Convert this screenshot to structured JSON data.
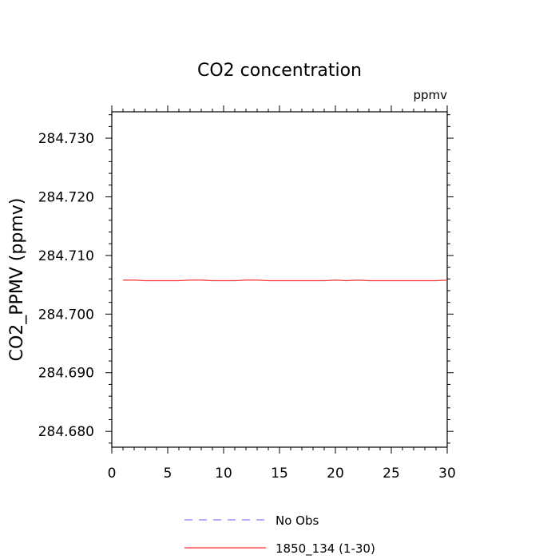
{
  "chart_data": {
    "type": "line",
    "title": "CO2 concentration",
    "units_label": "ppmv",
    "xlabel": "",
    "ylabel": "CO2_PPMV  (ppmv)",
    "xlim": [
      0,
      30
    ],
    "ylim": [
      284.6773,
      284.7345
    ],
    "x_ticks": [
      0,
      5,
      10,
      15,
      20,
      25,
      30
    ],
    "x_tick_labels": [
      "0",
      "5",
      "10",
      "15",
      "20",
      "25",
      "30"
    ],
    "y_ticks": [
      284.68,
      284.69,
      284.7,
      284.71,
      284.72,
      284.73
    ],
    "y_tick_labels": [
      "284.680",
      "284.690",
      "284.700",
      "284.710",
      "284.720",
      "284.730"
    ],
    "grid": false,
    "legend_position": "bottom",
    "series": [
      {
        "name": "No Obs",
        "color": "#8080ff",
        "style": "dashed",
        "x": [],
        "y": []
      },
      {
        "name": "1850_134 (1-30)",
        "color": "#ff3030",
        "style": "solid",
        "x": [
          1,
          2,
          3,
          4,
          5,
          6,
          7,
          8,
          9,
          10,
          11,
          12,
          13,
          14,
          15,
          16,
          17,
          18,
          19,
          20,
          21,
          22,
          23,
          24,
          25,
          26,
          27,
          28,
          29,
          30
        ],
        "y": [
          284.7058,
          284.7058,
          284.7057,
          284.7057,
          284.7057,
          284.7057,
          284.7058,
          284.7058,
          284.7057,
          284.7057,
          284.7057,
          284.7058,
          284.7058,
          284.7057,
          284.7057,
          284.7057,
          284.7057,
          284.7057,
          284.7057,
          284.7058,
          284.7057,
          284.7058,
          284.7057,
          284.7057,
          284.7057,
          284.7057,
          284.7057,
          284.7057,
          284.7057,
          284.7058
        ]
      }
    ]
  }
}
